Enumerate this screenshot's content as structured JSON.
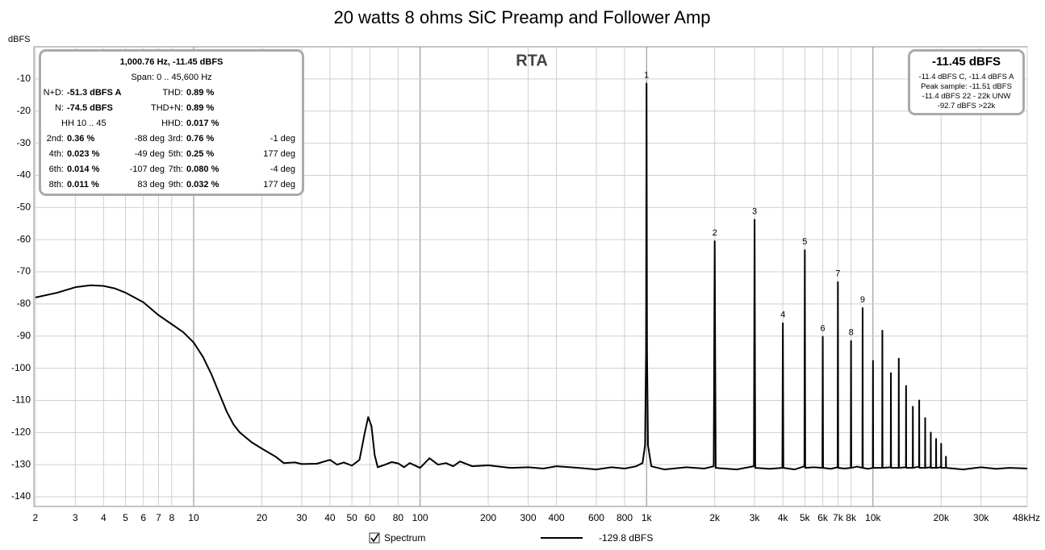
{
  "chart_data": {
    "type": "line",
    "title": "20 watts 8 ohms SiC Preamp and Follower Amp",
    "plot_label": "RTA",
    "y_label": "dBFS",
    "log_x": true,
    "grid": true,
    "xlim": [
      1.97,
      48000
    ],
    "ylim": [
      -143,
      0
    ],
    "yticks": [
      -10,
      -20,
      -30,
      -40,
      -50,
      -60,
      -70,
      -80,
      -90,
      -100,
      -110,
      -120,
      -130,
      -140
    ],
    "xticks": [
      2,
      3,
      4,
      5,
      6,
      7,
      8,
      10,
      20,
      30,
      40,
      50,
      60,
      80,
      100,
      200,
      300,
      400,
      600,
      800,
      {
        "value": 1000,
        "label": "1k"
      },
      {
        "value": 2000,
        "label": "2k"
      },
      {
        "value": 3000,
        "label": "3k"
      },
      {
        "value": 4000,
        "label": "4k"
      },
      {
        "value": 5000,
        "label": "5k"
      },
      {
        "value": 6000,
        "label": "6k"
      },
      {
        "value": 7000,
        "label": "7k"
      },
      {
        "value": 8000,
        "label": "8k"
      },
      {
        "value": 10000,
        "label": "10k"
      },
      {
        "value": 20000,
        "label": "20k"
      },
      {
        "value": 30000,
        "label": "30k"
      },
      {
        "value": 48000,
        "label": "48kHz"
      }
    ],
    "x": [
      2,
      2.5,
      3,
      3.5,
      4,
      4.5,
      5,
      6,
      7,
      8,
      9,
      10,
      11,
      12,
      13,
      14,
      15,
      16,
      18,
      20,
      23,
      25,
      28,
      30,
      35,
      40,
      43,
      46,
      50,
      54,
      57,
      59,
      61,
      63,
      65,
      70,
      75,
      80,
      85,
      90,
      100,
      110,
      120,
      130,
      140,
      150,
      170,
      200,
      250,
      300,
      350,
      400,
      500,
      600,
      700,
      800,
      900,
      960,
      985,
      995,
      1000,
      1005,
      1015,
      1050,
      1200,
      1500,
      1800,
      1980,
      2000,
      2020,
      2500,
      2980,
      3000,
      3020,
      3500,
      3980,
      4000,
      4020,
      4500,
      4980,
      5000,
      5020,
      5500,
      5980,
      6000,
      6020,
      6500,
      6980,
      7000,
      7020,
      7500,
      7980,
      8000,
      8020,
      8500,
      8980,
      9000,
      9020,
      9500,
      9980,
      10000,
      10020,
      10980,
      11000,
      11020,
      11980,
      12000,
      12020,
      12980,
      13000,
      13020,
      13980,
      14000,
      14020,
      14980,
      15000,
      15020,
      15980,
      16000,
      16020,
      16980,
      17000,
      17020,
      17980,
      18000,
      18020,
      18980,
      19000,
      19020,
      19980,
      20000,
      20020,
      20980,
      21000,
      21020,
      25000,
      30000,
      35000,
      40000,
      48000
    ],
    "series": [
      {
        "name": "Spectrum",
        "color": "#000000",
        "legend_value": "-129.8 dBFS",
        "values": [
          -78,
          -76.5,
          -74.8,
          -74.2,
          -74.4,
          -75.2,
          -76.5,
          -79.5,
          -83.5,
          -86.3,
          -88.8,
          -92,
          -96.5,
          -102,
          -108,
          -113.5,
          -117.5,
          -120,
          -123,
          -125,
          -127.5,
          -129.5,
          -129.3,
          -129.8,
          -129.7,
          -128.5,
          -130,
          -129.3,
          -130.3,
          -128.5,
          -120,
          -115.2,
          -118,
          -127,
          -130.8,
          -130,
          -129.2,
          -129.6,
          -130.8,
          -129.5,
          -131,
          -128,
          -130,
          -129.5,
          -130.5,
          -129,
          -130.5,
          -130.2,
          -131,
          -130.8,
          -131.2,
          -130.5,
          -131,
          -131.5,
          -130.8,
          -131.2,
          -130.5,
          -129.5,
          -124,
          -95,
          -11.45,
          -95,
          -124,
          -130.5,
          -131.5,
          -130.8,
          -131.2,
          -130.5,
          -60.5,
          -131,
          -131.5,
          -130.5,
          -53.8,
          -131,
          -131.3,
          -131,
          -86,
          -131,
          -131.5,
          -130.5,
          -63.3,
          -131,
          -130.8,
          -131,
          -90.2,
          -131,
          -131.3,
          -130.8,
          -73.2,
          -131,
          -131.2,
          -131,
          -91.5,
          -131,
          -130.6,
          -131,
          -81.3,
          -131,
          -131.3,
          -131,
          -97.7,
          -131,
          -131,
          -88.3,
          -131,
          -130.8,
          -101.5,
          -131,
          -131,
          -97,
          -131,
          -130.8,
          -105.5,
          -131,
          -131,
          -112,
          -131,
          -130.6,
          -110,
          -131,
          -131,
          -115.5,
          -131,
          -130.8,
          -120,
          -131,
          -131,
          -122,
          -131,
          -130.8,
          -123.5,
          -131,
          -131,
          -127.5,
          -131,
          -131.5,
          -130.8,
          -131.3,
          -131,
          -131.2
        ]
      }
    ],
    "harmonic_labels": [
      {
        "text": "1",
        "x": 1000,
        "y": -11.45
      },
      {
        "text": "2",
        "x": 2000,
        "y": -60.5
      },
      {
        "text": "3",
        "x": 3000,
        "y": -53.8
      },
      {
        "text": "4",
        "x": 4000,
        "y": -86
      },
      {
        "text": "5",
        "x": 5000,
        "y": -63.3
      },
      {
        "text": "6",
        "x": 6000,
        "y": -90.2
      },
      {
        "text": "7",
        "x": 7000,
        "y": -73.2
      },
      {
        "text": "8",
        "x": 8000,
        "y": -91.5
      },
      {
        "text": "9",
        "x": 9000,
        "y": -81.3
      }
    ],
    "info_box": {
      "header": "1,000.76 Hz, -11.45 dBFS",
      "span": "Span: 0 .. 45,600 Hz",
      "rows": [
        [
          {
            "label": "N+D:",
            "value": "-51.3 dBFS A"
          },
          {
            "label": "THD:",
            "value": "0.89 %"
          }
        ],
        [
          {
            "label": "N:",
            "value": "-74.5 dBFS"
          },
          {
            "label": "THD+N:",
            "value": "0.89 %"
          }
        ],
        [
          {
            "text": "HH 10 .. 45"
          },
          {
            "label": "HHD:",
            "value": "0.017 %"
          }
        ],
        [
          {
            "label": "2nd:",
            "value": "0.36 %",
            "phase": "-88 deg"
          },
          {
            "label": "3rd:",
            "value": "0.76 %",
            "phase": "-1 deg"
          }
        ],
        [
          {
            "label": "4th:",
            "value": "0.023 %",
            "phase": "-49 deg"
          },
          {
            "label": "5th:",
            "value": "0.25 %",
            "phase": "177 deg"
          }
        ],
        [
          {
            "label": "6th:",
            "value": "0.014 %",
            "phase": "-107 deg"
          },
          {
            "label": "7th:",
            "value": "0.080 %",
            "phase": "-4 deg"
          }
        ],
        [
          {
            "label": "8th:",
            "value": "0.011 %",
            "phase": "83 deg"
          },
          {
            "label": "9th:",
            "value": "0.032 %",
            "phase": "177 deg"
          }
        ]
      ]
    },
    "level_box": {
      "main": "-11.45 dBFS",
      "lines": [
        "-11.4 dBFS C, -11.4 dBFS A",
        "Peak sample: -11.51 dBFS",
        "-11.4 dBFS 22 - 22k UNW",
        "-92.7 dBFS >22k"
      ]
    }
  }
}
